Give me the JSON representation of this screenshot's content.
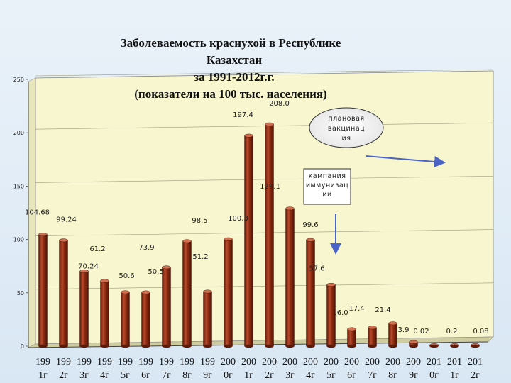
{
  "title_lines": [
    "Заболеваемость краснухой в Республике",
    "Казахстан",
    "за 1991-2012г.г.",
    "(показатели на 100 тыс. населения)"
  ],
  "colors": {
    "plot_bg": "#f7f6cf",
    "bar": "#8a2a10",
    "bar_highlight": "#c0583a",
    "arrow": "#4a63c6",
    "page_bg": "#dfeaf5"
  },
  "annotations": {
    "vaccination": [
      "плановая",
      "вакцинац",
      "ия"
    ],
    "campaign": [
      "кампания",
      "иммунизац",
      "ии"
    ]
  },
  "chart_data": {
    "type": "bar",
    "title": "Заболеваемость краснухой в Республике Казахстан за 1991-2012г.г. (показатели на 100 тыс. населения)",
    "categories": [
      [
        "199",
        "1г"
      ],
      [
        "199",
        "2г"
      ],
      [
        "199",
        "3г"
      ],
      [
        "199",
        "4г"
      ],
      [
        "199",
        "5г"
      ],
      [
        "199",
        "6г"
      ],
      [
        "199",
        "7г"
      ],
      [
        "199",
        "8г"
      ],
      [
        "199",
        "9г"
      ],
      [
        "200",
        "0г"
      ],
      [
        "200",
        "1г"
      ],
      [
        "200",
        "2г"
      ],
      [
        "200",
        "3г"
      ],
      [
        "200",
        "4г"
      ],
      [
        "200",
        "5г"
      ],
      [
        "200",
        "6г"
      ],
      [
        "200",
        "7г"
      ],
      [
        "200",
        "8г"
      ],
      [
        "200",
        "9г"
      ],
      [
        "201",
        "0г"
      ],
      [
        "201",
        "1г"
      ],
      [
        "201",
        "2г"
      ]
    ],
    "values": [
      104.68,
      99.24,
      70.24,
      61.2,
      50.6,
      50.5,
      73.9,
      98.5,
      51.2,
      100.3,
      197.4,
      208.0,
      129.1,
      99.6,
      57.6,
      16.0,
      17.4,
      21.4,
      3.9,
      0.02,
      0.2,
      0.08
    ],
    "labels": [
      "104.68",
      "99.24",
      "70.24",
      "61.2",
      "50.6",
      "50.5",
      "73.9",
      "98.5",
      "51.2",
      "100.3",
      "197.4",
      "208.0",
      "129.1",
      "99.6",
      "57.6",
      "16.0",
      "17.4",
      "21.4",
      "3.9",
      "0.02",
      "0.2",
      "0.08"
    ],
    "ylim": [
      0,
      250
    ],
    "yticks": [
      0,
      50,
      100,
      150,
      200,
      250
    ],
    "grid": true
  }
}
